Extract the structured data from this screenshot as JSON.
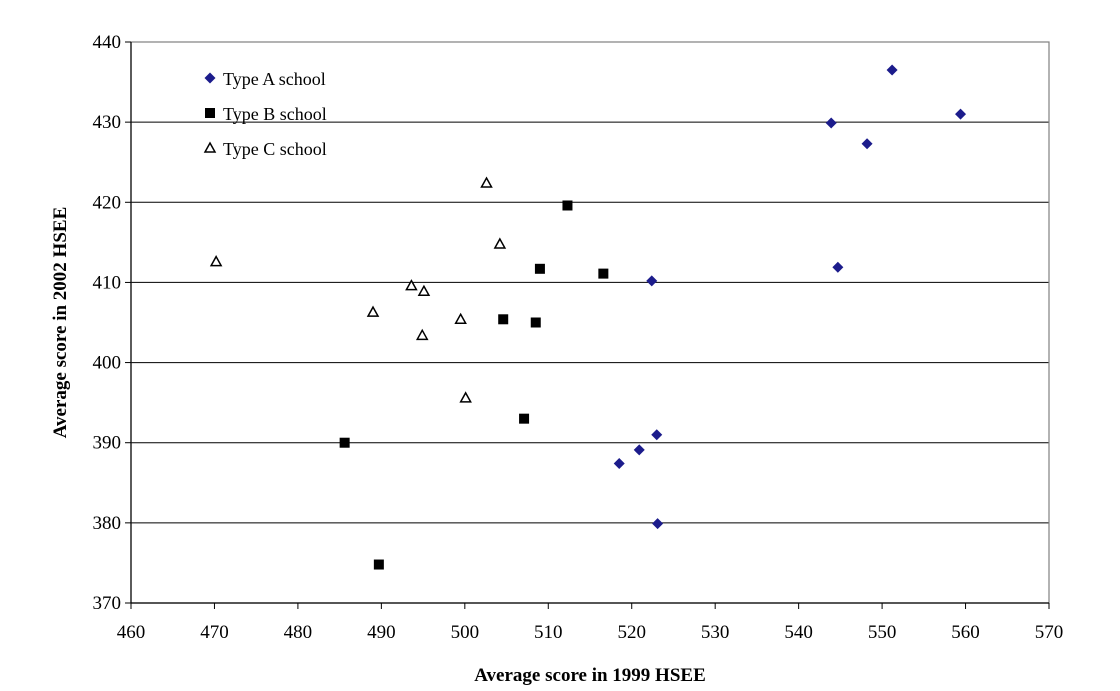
{
  "chart_data": {
    "type": "scatter",
    "title": "",
    "xlabel": "Average score in 1999 HSEE",
    "ylabel": "Average score in 2002 HSEE",
    "xlim": [
      460,
      570
    ],
    "ylim": [
      370,
      440
    ],
    "xticks": [
      460,
      470,
      480,
      490,
      500,
      510,
      520,
      530,
      540,
      550,
      560,
      570
    ],
    "yticks": [
      370,
      380,
      390,
      400,
      410,
      420,
      430,
      440
    ],
    "grid": "horizontal",
    "legend_position": "top-left",
    "series": [
      {
        "name": "Type A school",
        "marker": "diamond",
        "color": "#1c1c8c",
        "points": [
          [
            551.2,
            436.5
          ],
          [
            559.4,
            431.0
          ],
          [
            543.9,
            429.9
          ],
          [
            548.2,
            427.3
          ],
          [
            544.7,
            411.9
          ],
          [
            522.4,
            410.2
          ],
          [
            523.0,
            391.0
          ],
          [
            520.9,
            389.1
          ],
          [
            518.5,
            387.4
          ],
          [
            523.1,
            379.9
          ]
        ]
      },
      {
        "name": "Type B school",
        "marker": "square",
        "color": "#000000",
        "points": [
          [
            512.3,
            419.6
          ],
          [
            509.0,
            411.7
          ],
          [
            516.6,
            411.1
          ],
          [
            504.6,
            405.4
          ],
          [
            508.5,
            405.0
          ],
          [
            507.1,
            393.0
          ],
          [
            485.6,
            390.0
          ],
          [
            489.7,
            374.8
          ]
        ]
      },
      {
        "name": "Type C school",
        "marker": "triangle",
        "color": "#000000",
        "points": [
          [
            502.6,
            422.4
          ],
          [
            504.2,
            414.8
          ],
          [
            470.2,
            412.6
          ],
          [
            493.6,
            409.6
          ],
          [
            495.1,
            408.9
          ],
          [
            489.0,
            406.3
          ],
          [
            499.5,
            405.4
          ],
          [
            494.9,
            403.4
          ],
          [
            500.1,
            395.6
          ]
        ]
      }
    ]
  }
}
